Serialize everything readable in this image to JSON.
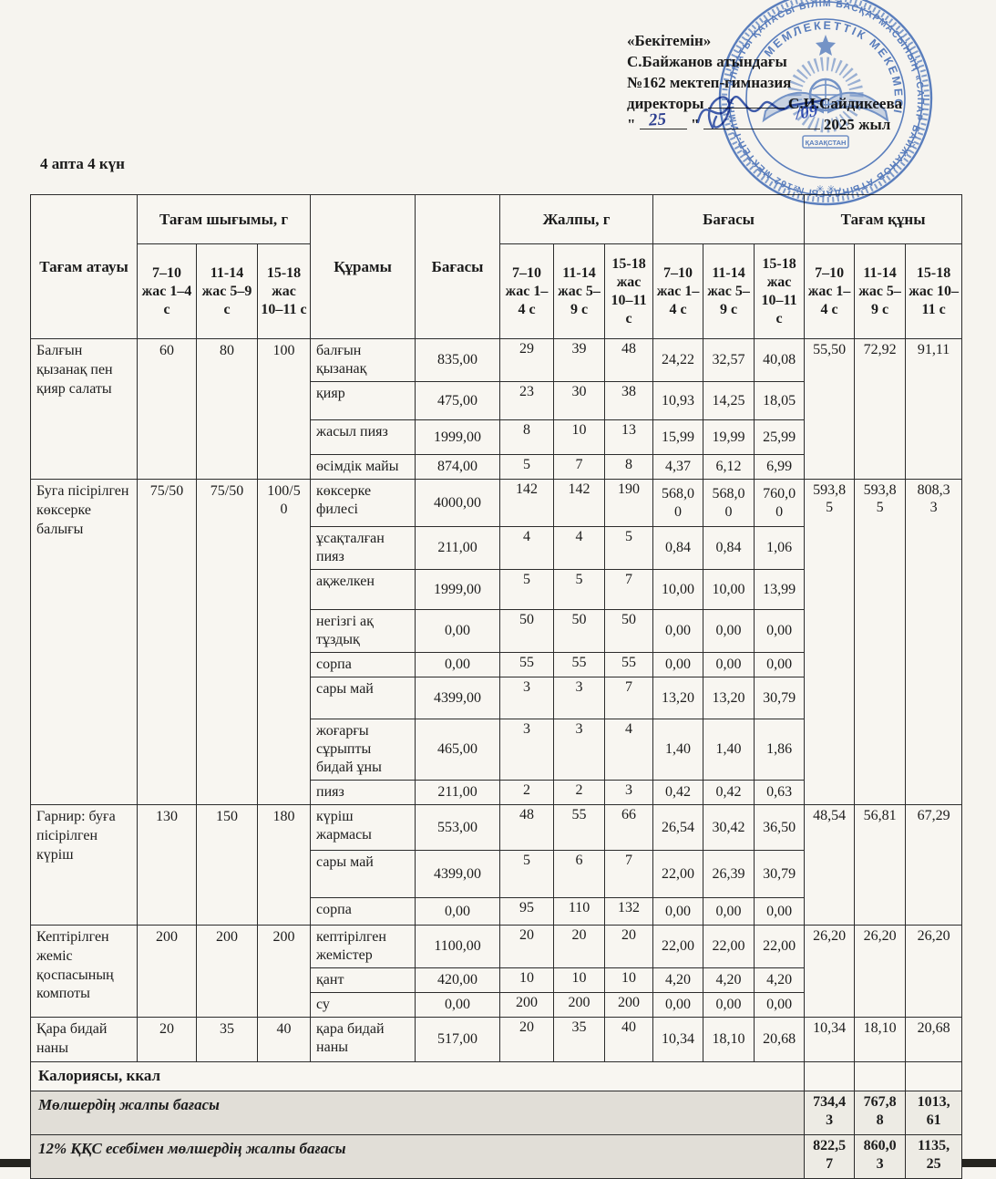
{
  "page": {
    "week_label": "4 апта 4 күн",
    "approval": {
      "line1": "«Бекітемін»",
      "line2": "С.Байжанов атындағы",
      "line3": "№162 мектеп-гимназия",
      "director_label": "директоры",
      "director_name": "С.И.Сайдикеева",
      "quote_mark": "\"",
      "day_handwritten": "25",
      "month_handwritten": "/09",
      "year_label": "2025 жыл"
    },
    "stamp": {
      "outer_ring_text": "АЛМАТЫ ҚАЛАСЫ БІЛІМ БАСҚАРМАСЫНЫҢ «САПАР БАЙЖАНОВ АТЫНДАҒЫ №162 МЕКТЕП-ГИМНАЗИЯ»",
      "inner_ring_text": "МЕМЛЕКЕТТІК МЕКЕМЕСІ",
      "center_banner": "ҚАЗАҚСТАН",
      "asterisks": "✳ ✳",
      "color": "#3f6dc0"
    }
  },
  "table": {
    "group_headers": {
      "dish": "Тағам атауы",
      "yield": "Тағам шығымы, г",
      "composition": "Құрамы",
      "unit_price": "Бағасы",
      "total_g": "Жалпы, г",
      "price": "Бағасы",
      "dish_cost": "Тағам құны"
    },
    "age_headers": {
      "yield": [
        "7–10 жас 1–4 с",
        "11-14 жас 5–9 с",
        "15-18 жас 10–11 с"
      ],
      "total_g": [
        "7–10 жас 1–4 с",
        "11-14 жас 5–9 с",
        "15-18 жас 10–11 с"
      ],
      "price": [
        "7–10 жас 1–4 с",
        "11-14 жас 5–9 с",
        "15-18 жас 10–11 с"
      ],
      "dish_cost": [
        "7–10 жас 1–4 с",
        "11-14 жас 5–9 с",
        "15-18 жас 10–11 с"
      ]
    },
    "rows": [
      {
        "name": "Балғын қызанақ пен қияр салаты",
        "yields": [
          "60",
          "80",
          "100"
        ],
        "cost": [
          "55,50",
          "72,92",
          "91,11"
        ],
        "ingredients": [
          {
            "name": "балғын қызанақ",
            "price": "835,00",
            "qty": [
              "29",
              "39",
              "48"
            ],
            "totals": [
              "24,22",
              "32,57",
              "40,08"
            ]
          },
          {
            "name": "қияр",
            "price": "475,00",
            "qty": [
              "23",
              "30",
              "38"
            ],
            "totals": [
              "10,93",
              "14,25",
              "18,05"
            ]
          },
          {
            "name": "жасыл пияз",
            "price": "1999,00",
            "qty": [
              "8",
              "10",
              "13"
            ],
            "totals": [
              "15,99",
              "19,99",
              "25,99"
            ]
          },
          {
            "name": "өсімдік майы",
            "price": "874,00",
            "qty": [
              "5",
              "7",
              "8"
            ],
            "totals": [
              "4,37",
              "6,12",
              "6,99"
            ]
          }
        ]
      },
      {
        "name": "Буга пісірілген көксерке балығы",
        "yields": [
          "75/50",
          "75/50",
          "100/50"
        ],
        "cost": [
          "593,85",
          "593,85",
          "808,33"
        ],
        "ingredients": [
          {
            "name": "көксерке филесі",
            "price": "4000,00",
            "qty": [
              "142",
              "142",
              "190"
            ],
            "totals": [
              "568,00",
              "568,00",
              "760,00"
            ]
          },
          {
            "name": "ұсақталған пияз",
            "price": "211,00",
            "qty": [
              "4",
              "4",
              "5"
            ],
            "totals": [
              "0,84",
              "0,84",
              "1,06"
            ]
          },
          {
            "name": "ақжелкен",
            "price": "1999,00",
            "qty": [
              "5",
              "5",
              "7"
            ],
            "totals": [
              "10,00",
              "10,00",
              "13,99"
            ]
          },
          {
            "name": "негізгі ақ тұздық",
            "price": "0,00",
            "qty": [
              "50",
              "50",
              "50"
            ],
            "totals": [
              "0,00",
              "0,00",
              "0,00"
            ]
          },
          {
            "name": "сорпа",
            "price": "0,00",
            "qty": [
              "55",
              "55",
              "55"
            ],
            "totals": [
              "0,00",
              "0,00",
              "0,00"
            ]
          },
          {
            "name": "сары май",
            "price": "4399,00",
            "qty": [
              "3",
              "3",
              "7"
            ],
            "totals": [
              "13,20",
              "13,20",
              "30,79"
            ]
          },
          {
            "name": "жоғарғы сұрыпты бидай ұны",
            "price": "465,00",
            "qty": [
              "3",
              "3",
              "4"
            ],
            "totals": [
              "1,40",
              "1,40",
              "1,86"
            ]
          },
          {
            "name": "пияз",
            "price": "211,00",
            "qty": [
              "2",
              "2",
              "3"
            ],
            "totals": [
              "0,42",
              "0,42",
              "0,63"
            ]
          }
        ]
      },
      {
        "name": "Гарнир: буға пісірілген күріш",
        "yields": [
          "130",
          "150",
          "180"
        ],
        "cost": [
          "48,54",
          "56,81",
          "67,29"
        ],
        "ingredients": [
          {
            "name": "күріш жармасы",
            "price": "553,00",
            "qty": [
              "48",
              "55",
              "66"
            ],
            "totals": [
              "26,54",
              "30,42",
              "36,50"
            ]
          },
          {
            "name": "сары май",
            "price": "4399,00",
            "qty": [
              "5",
              "6",
              "7"
            ],
            "totals": [
              "22,00",
              "26,39",
              "30,79"
            ]
          },
          {
            "name": "сорпа",
            "price": "0,00",
            "qty": [
              "95",
              "110",
              "132"
            ],
            "totals": [
              "0,00",
              "0,00",
              "0,00"
            ]
          }
        ]
      },
      {
        "name": "Кептірілген жеміс қоспасының компоты",
        "yields": [
          "200",
          "200",
          "200"
        ],
        "cost": [
          "26,20",
          "26,20",
          "26,20"
        ],
        "ingredients": [
          {
            "name": "кептірілген жемістер",
            "price": "1100,00",
            "qty": [
              "20",
              "20",
              "20"
            ],
            "totals": [
              "22,00",
              "22,00",
              "22,00"
            ]
          },
          {
            "name": "қант",
            "price": "420,00",
            "qty": [
              "10",
              "10",
              "10"
            ],
            "totals": [
              "4,20",
              "4,20",
              "4,20"
            ]
          },
          {
            "name": "су",
            "price": "0,00",
            "qty": [
              "200",
              "200",
              "200"
            ],
            "totals": [
              "0,00",
              "0,00",
              "0,00"
            ]
          }
        ]
      },
      {
        "name": "Қара бидай наны",
        "yields": [
          "20",
          "35",
          "40"
        ],
        "cost": [
          "10,34",
          "18,10",
          "20,68"
        ],
        "ingredients": [
          {
            "name": "қара бидай наны",
            "price": "517,00",
            "qty": [
              "20",
              "35",
              "40"
            ],
            "totals": [
              "10,34",
              "18,10",
              "20,68"
            ]
          }
        ]
      }
    ],
    "calories_row": {
      "label": "Калориясы, ккал",
      "values": [
        "",
        "",
        ""
      ]
    },
    "summary_rows": [
      {
        "label": "Мөлшердің жалпы бағасы",
        "values": [
          "734,43",
          "767,88",
          "1013,61"
        ]
      },
      {
        "label": "12% ҚҚС есебімен мөлшердің жалпы бағасы",
        "values": [
          "822,57",
          "860,03",
          "1135,25"
        ]
      }
    ]
  }
}
